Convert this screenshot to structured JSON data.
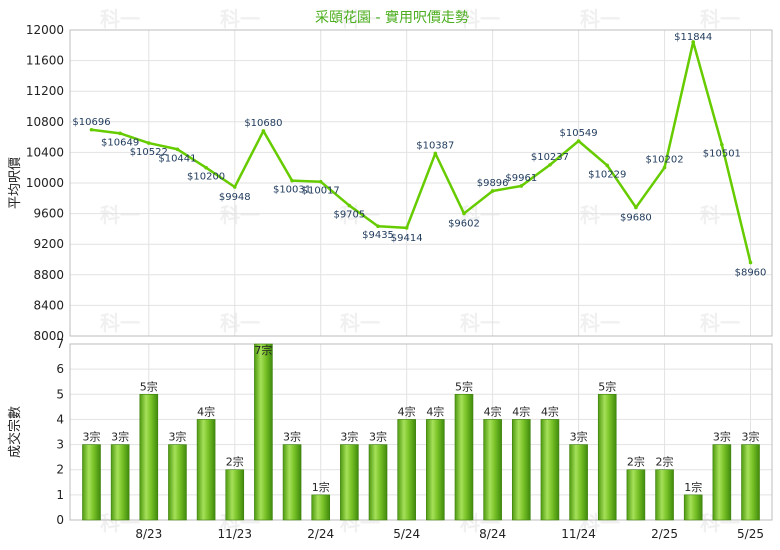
{
  "chart_data": [
    {
      "type": "line",
      "title": "采頤花園 - 實用呎價走勢",
      "ylabel": "平均呎價",
      "ylim": [
        8000,
        12000
      ],
      "yticks": [
        8000,
        8400,
        8800,
        9200,
        9600,
        10000,
        10400,
        10800,
        11200,
        11600,
        12000
      ],
      "grid": true,
      "color": "#66cc00",
      "series": [
        {
          "values": [
            10696,
            10649,
            10522,
            10441,
            10200,
            9948,
            10680,
            10031,
            10017,
            9705,
            9435,
            9414,
            10387,
            9602,
            9896,
            9961,
            10237,
            10549,
            10229,
            9680,
            10202,
            11844,
            10501,
            8960
          ],
          "labels": [
            "$10696",
            "$10649",
            "$10522",
            "$10441",
            "$10200",
            "$9948",
            "$10680",
            "$10031",
            "$10017",
            "$9705",
            "$9435",
            "$9414",
            "$10387",
            "$9602",
            "$9896",
            "$9961",
            "$10237",
            "$10549",
            "$10229",
            "$9680",
            "$10202",
            "$11844",
            "$10501",
            "$8960"
          ]
        }
      ]
    },
    {
      "type": "bar",
      "ylabel": "成交宗數",
      "ylim": [
        0,
        7
      ],
      "yticks": [
        0,
        1,
        2,
        3,
        4,
        5,
        6,
        7
      ],
      "grid": true,
      "color": "#66bb22",
      "categories": [
        "8/23",
        "11/23",
        "2/24",
        "5/24",
        "8/24",
        "11/24",
        "2/25",
        "5/25"
      ],
      "values": [
        3,
        3,
        5,
        3,
        4,
        2,
        7,
        3,
        1,
        3,
        3,
        4,
        4,
        5,
        4,
        4,
        4,
        3,
        5,
        2,
        2,
        1,
        3,
        3
      ],
      "labels": [
        "3宗",
        "3宗",
        "5宗",
        "3宗",
        "4宗",
        "2宗",
        "7宗",
        "3宗",
        "1宗",
        "3宗",
        "3宗",
        "4宗",
        "4宗",
        "5宗",
        "4宗",
        "4宗",
        "4宗",
        "3宗",
        "5宗",
        "2宗",
        "2宗",
        "1宗",
        "3宗",
        "3宗"
      ]
    }
  ],
  "watermark": "科一"
}
